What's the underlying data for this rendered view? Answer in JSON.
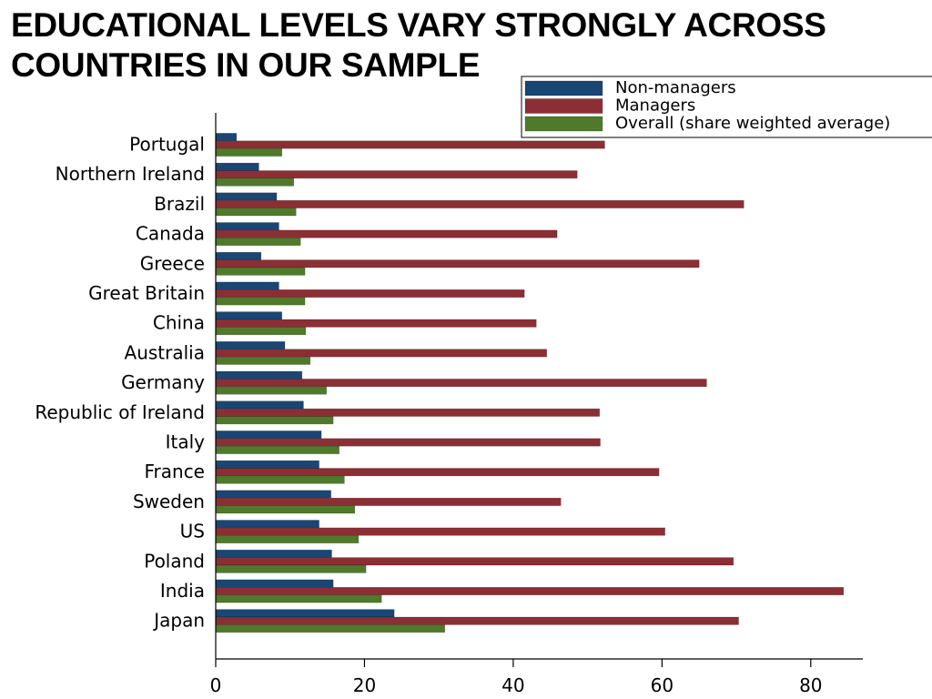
{
  "slide": {
    "title_line1": "EDUCATIONAL LEVELS VARY STRONGLY ACROSS",
    "title_line2": "COUNTRIES IN OUR SAMPLE"
  },
  "chart_data": {
    "type": "bar",
    "orientation": "horizontal",
    "categories": [
      "Portugal",
      "Northern Ireland",
      "Brazil",
      "Canada",
      "Greece",
      "Great Britain",
      "China",
      "Australia",
      "Germany",
      "Republic of Ireland",
      "Italy",
      "France",
      "Sweden",
      "US",
      "Poland",
      "India",
      "Japan"
    ],
    "series": [
      {
        "name": "Non-managers",
        "color": "#1a4674",
        "values": [
          2.8,
          5.8,
          8.2,
          8.5,
          6.1,
          8.5,
          8.9,
          9.3,
          11.6,
          11.8,
          14.2,
          13.9,
          15.5,
          13.9,
          15.6,
          15.8,
          24.0
        ]
      },
      {
        "name": "Managers",
        "color": "#8b2f34",
        "values": [
          52.3,
          48.6,
          71.0,
          45.9,
          65.0,
          41.5,
          43.1,
          44.5,
          66.0,
          51.6,
          51.7,
          59.6,
          46.4,
          60.4,
          69.6,
          84.4,
          70.3
        ]
      },
      {
        "name": "Overall (share weighted average)",
        "color": "#4f7a2c",
        "values": [
          8.9,
          10.5,
          10.8,
          11.4,
          12.0,
          12.0,
          12.1,
          12.7,
          14.9,
          15.8,
          16.6,
          17.3,
          18.7,
          19.2,
          20.2,
          22.3,
          30.8
        ]
      }
    ],
    "xlim": [
      0,
      87
    ],
    "xticks": [
      0,
      20,
      40,
      60,
      80
    ],
    "xlabel": "",
    "ylabel": "",
    "legend_position": "top-right",
    "grid": false
  }
}
